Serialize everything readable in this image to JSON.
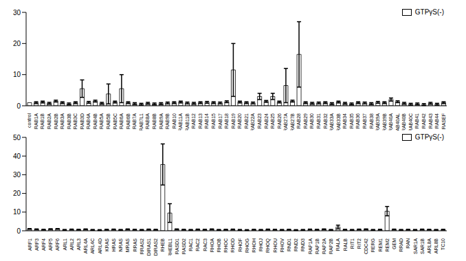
{
  "chart_data": [
    {
      "type": "bar",
      "legend": "upper right",
      "ylim": [
        0,
        30
      ],
      "yticks": [
        0,
        10,
        20,
        30
      ],
      "grid": false,
      "categories": [
        "control",
        "RAB1A",
        "RAB1B",
        "RAB2A",
        "RAB2B",
        "RAB3A",
        "RAB3B",
        "RAB3C",
        "RAB3D",
        "RAB4A",
        "RAB4B",
        "RAB5A",
        "RAB5B",
        "RAB5C",
        "RAB6A",
        "RAB6B",
        "RAB7A",
        "RAB7L1",
        "RAB8A",
        "RAB8B",
        "RAB9A",
        "RAB9B",
        "RAB10",
        "RAB11A",
        "RAB11B",
        "RAB12",
        "RAB13",
        "RAB14",
        "RAB15",
        "RAB17",
        "RAB18",
        "RAB19",
        "RAB20",
        "RAB21",
        "RAB22A",
        "RAB23",
        "RAB24",
        "RAB25",
        "RAB26",
        "RAB27A",
        "RAB27B",
        "RAB28",
        "RAB29",
        "RAB30",
        "RAB31",
        "RAB32",
        "RAB33A",
        "RAB33B",
        "RAB34",
        "RAB35",
        "RAB36",
        "RAB37",
        "RAB38",
        "RAB39A",
        "RAB39B",
        "RAB40A",
        "RAB40AL",
        "RAB40B",
        "RAB40C",
        "RAB41",
        "RAB42",
        "RAB43",
        "RAB44",
        "RASEF"
      ],
      "series": [
        {
          "name": "GTPγS(-)",
          "color": "#ffffff",
          "values": [
            1,
            1,
            1.2,
            0.8,
            1.5,
            1,
            0.6,
            1,
            5.5,
            1.1,
            1.5,
            0.8,
            3.8,
            1.2,
            5.5,
            1,
            0.7,
            0.5,
            0.8,
            0.6,
            0.7,
            0.9,
            1,
            1.2,
            0.9,
            0.8,
            1,
            1.1,
            1,
            0.9,
            1.3,
            11.5,
            1.2,
            1,
            0.9,
            3,
            1.4,
            3,
            1.2,
            6.5,
            1.5,
            16.5,
            1,
            0.8,
            0.9,
            1,
            0.7,
            1.2,
            0.8,
            0.6,
            1,
            0.9,
            0.7,
            1.1,
            1,
            2,
            1.3,
            0.8,
            0.5,
            0.6,
            0.4,
            0.8,
            0.5,
            1
          ],
          "errors": [
            0,
            0.3,
            0.3,
            0.3,
            0.3,
            0.3,
            0.3,
            0.3,
            2.8,
            0.3,
            0.3,
            0.3,
            3.2,
            0.3,
            4.5,
            0.3,
            0.3,
            0.3,
            0.3,
            0.3,
            0.3,
            0.3,
            0.3,
            0.3,
            0.3,
            0.3,
            0.3,
            0.3,
            0.3,
            0.3,
            0.3,
            8.5,
            0.3,
            0.3,
            0.3,
            1,
            0.3,
            1,
            0.3,
            5.5,
            0.3,
            10.5,
            0.3,
            0.3,
            0.3,
            0.3,
            0.3,
            0.3,
            0.3,
            0.3,
            0.3,
            0.3,
            0.3,
            0.3,
            0.3,
            0.5,
            0.3,
            0.3,
            0.3,
            0.3,
            0.3,
            0.3,
            0.3,
            0.3
          ]
        }
      ]
    },
    {
      "type": "bar",
      "legend": "upper right",
      "ylim": [
        0,
        50
      ],
      "yticks": [
        0,
        10,
        20,
        30,
        40,
        50
      ],
      "grid": false,
      "categories": [
        "ARF1",
        "ARF3",
        "ARF4",
        "ARF5",
        "ARF6",
        "ARL1",
        "ARL2",
        "ARL3",
        "ARL4A",
        "ARL4C",
        "ARL4D",
        "KRAS",
        "HRAS",
        "NRAS",
        "MRAS",
        "RRAS",
        "RRAS2",
        "DIRAS1",
        "DIRAS2",
        "RHEB",
        "RHEBL1",
        "RASD1",
        "RASD2",
        "RAC1",
        "RAC2",
        "RAC3",
        "RHOA",
        "RHOB",
        "RHOC",
        "RHOD",
        "RHOF",
        "RHOG",
        "RHOH",
        "RHOJ",
        "RHOQ",
        "RHOU",
        "RHOV",
        "RND1",
        "RND2",
        "RND3",
        "RAP1A",
        "RAP1B",
        "RAP2A",
        "RAP2B",
        "RALA",
        "RALB",
        "RIT1",
        "RIT2",
        "CDC42",
        "RERG",
        "REM1",
        "REM2",
        "GEM",
        "RRAD",
        "RAN",
        "SAR1A",
        "SAR1B",
        "ARL8A",
        "ARL8B",
        "TC10"
      ],
      "series": [
        {
          "name": "GTPγS(-)",
          "color": "#ffffff",
          "values": [
            1,
            0.8,
            0.6,
            0.9,
            1,
            0.5,
            0.7,
            0.6,
            0.8,
            0.5,
            0.4,
            0.6,
            0.7,
            0.5,
            0.8,
            0.6,
            0.5,
            0.7,
            0.6,
            35.5,
            9.5,
            0.8,
            0.6,
            0.5,
            0.7,
            0.6,
            0.8,
            0.5,
            0.6,
            0.7,
            0.5,
            0.4,
            0.6,
            0.5,
            0.7,
            0.6,
            0.5,
            0.6,
            0.4,
            0.5,
            0.7,
            0.6,
            0.8,
            0.5,
            2,
            0.6,
            0.5,
            0.7,
            0.8,
            0.5,
            0.6,
            10.5,
            0.7,
            0.5,
            0.6,
            0.5,
            0.7,
            0.6,
            0.5,
            0.6
          ],
          "errors": [
            0.2,
            0.2,
            0.2,
            0.2,
            0.2,
            0.2,
            0.2,
            0.2,
            0.2,
            0.2,
            0.2,
            0.2,
            0.2,
            0.2,
            0.2,
            0.2,
            0.2,
            0.2,
            0.2,
            11,
            5,
            0.2,
            0.2,
            0.2,
            0.2,
            0.2,
            0.2,
            0.2,
            0.2,
            0.2,
            0.2,
            0.2,
            0.2,
            0.2,
            0.2,
            0.2,
            0.2,
            0.2,
            0.2,
            0.2,
            0.2,
            0.2,
            0.2,
            0.2,
            1,
            0.2,
            0.2,
            0.2,
            0.2,
            0.2,
            0.2,
            2.5,
            0.2,
            0.2,
            0.2,
            0.2,
            0.2,
            0.2,
            0.2,
            0.2
          ]
        }
      ]
    }
  ]
}
